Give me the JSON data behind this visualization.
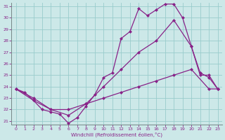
{
  "xlabel": "Windchill (Refroidissement éolien,°C)",
  "bg_color": "#cce8e8",
  "line_color": "#882288",
  "grid_color": "#99cccc",
  "xlim": [
    -0.5,
    23.5
  ],
  "ylim": [
    20.7,
    31.3
  ],
  "yticks": [
    21,
    22,
    23,
    24,
    25,
    26,
    27,
    28,
    29,
    30,
    31
  ],
  "xticks": [
    0,
    1,
    2,
    3,
    4,
    5,
    6,
    7,
    8,
    9,
    10,
    11,
    12,
    13,
    14,
    15,
    16,
    17,
    18,
    19,
    20,
    21,
    22,
    23
  ],
  "line1_x": [
    0,
    1,
    2,
    3,
    4,
    5,
    6,
    7,
    8,
    9,
    10,
    11,
    12,
    13,
    14,
    15,
    16,
    17,
    18,
    19,
    20,
    21,
    22,
    23
  ],
  "line1_y": [
    23.8,
    23.5,
    22.8,
    22.0,
    21.8,
    21.6,
    20.8,
    21.3,
    22.3,
    23.3,
    24.8,
    25.2,
    28.2,
    28.8,
    30.8,
    30.2,
    30.7,
    31.2,
    31.2,
    30.0,
    27.5,
    25.0,
    25.0,
    23.8
  ],
  "line2_x": [
    0,
    2,
    4,
    6,
    8,
    10,
    12,
    14,
    16,
    18,
    20,
    21,
    22,
    23
  ],
  "line2_y": [
    23.8,
    23.0,
    22.0,
    21.5,
    22.5,
    24.0,
    25.5,
    27.0,
    28.0,
    29.8,
    27.5,
    25.2,
    24.8,
    23.8
  ],
  "line3_x": [
    0,
    2,
    4,
    6,
    8,
    10,
    12,
    14,
    16,
    18,
    20,
    22,
    23
  ],
  "line3_y": [
    23.8,
    22.8,
    22.0,
    22.0,
    22.5,
    23.0,
    23.5,
    24.0,
    24.5,
    25.0,
    25.5,
    23.8,
    23.8
  ]
}
